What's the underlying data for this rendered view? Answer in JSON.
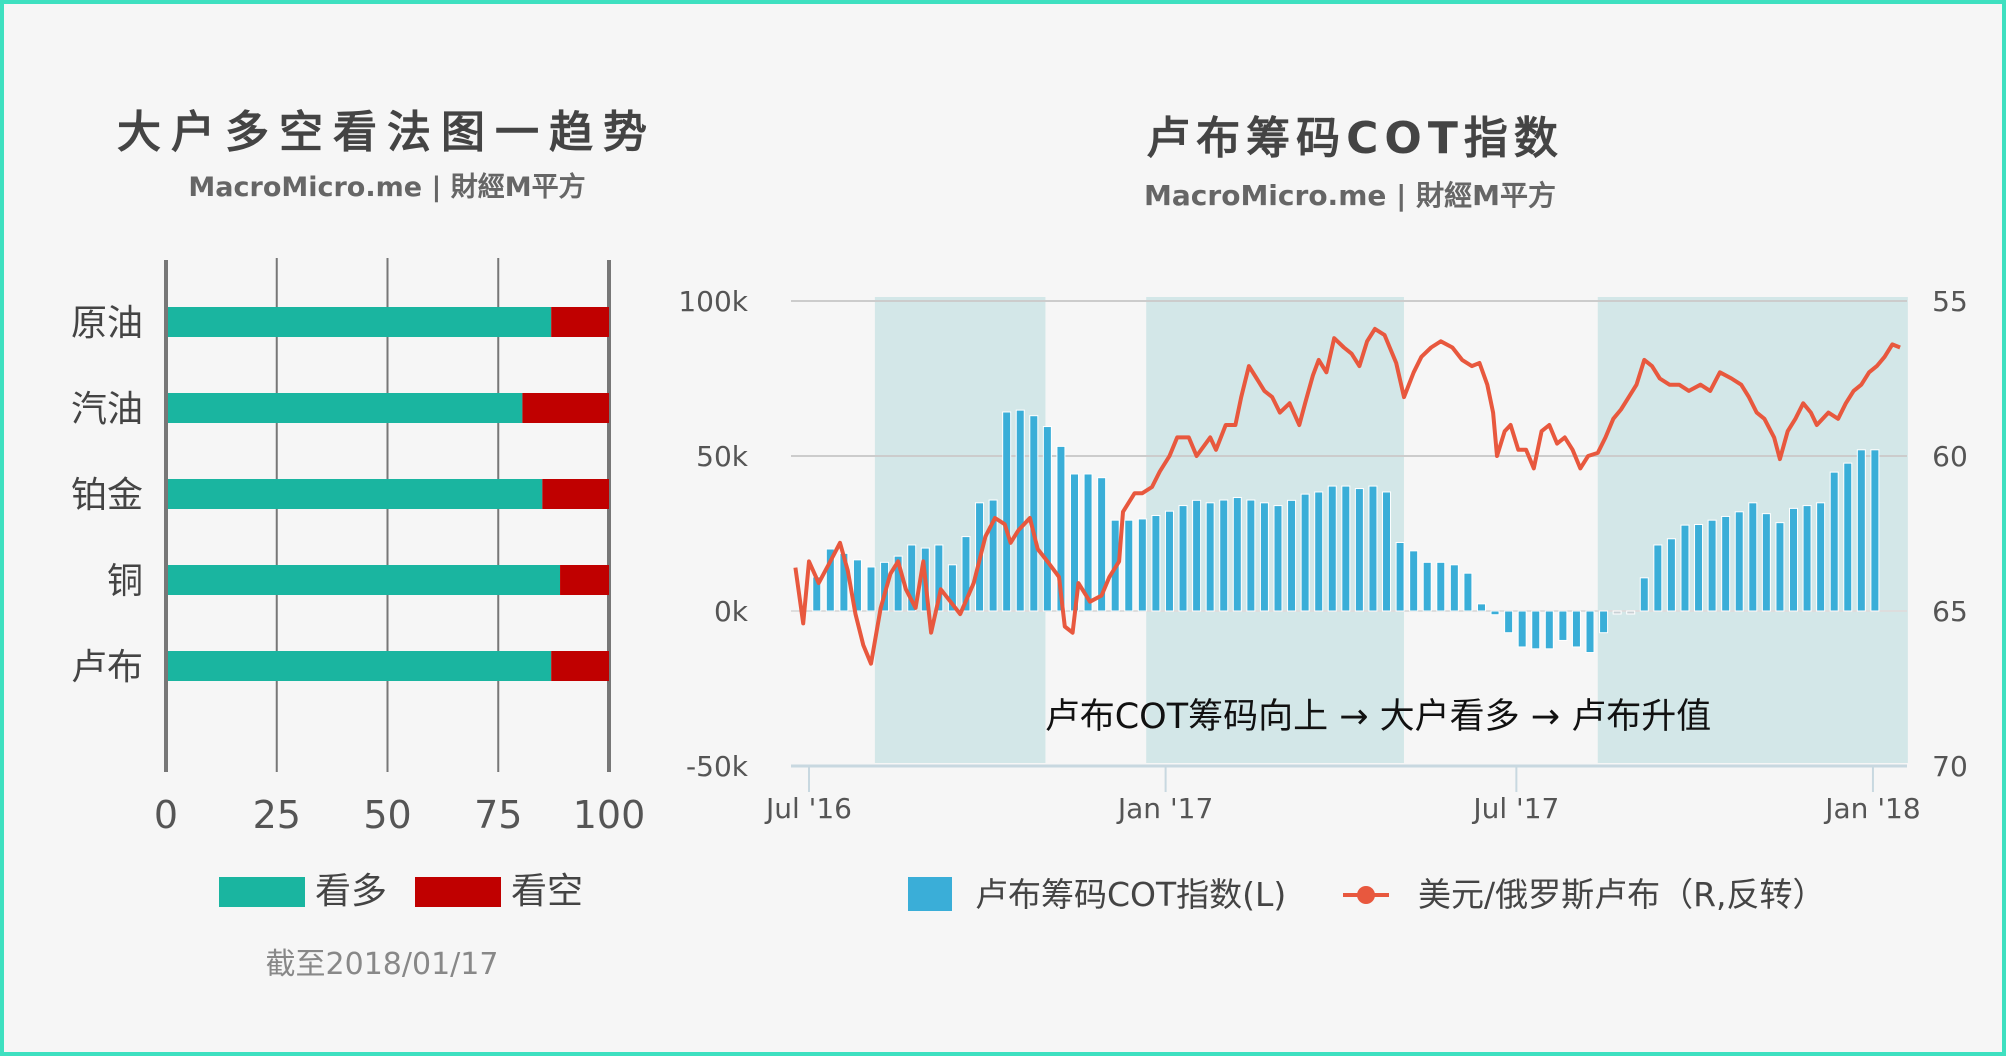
{
  "chart_data": [
    {
      "type": "bar",
      "orientation": "horizontal-stacked",
      "title": "大户多空看法图一趋势",
      "subtitle": "MacroMicro.me | 財經M平方",
      "categories": [
        "原油",
        "汽油",
        "铂金",
        "铜",
        "卢布"
      ],
      "series": [
        {
          "name": "看多",
          "color": "#1ab5a0",
          "values": [
            86.5,
            80,
            84.5,
            88.5,
            86.5
          ]
        },
        {
          "name": "看空",
          "color": "#c00000",
          "values": [
            13.5,
            20,
            15.5,
            11.5,
            13.5
          ]
        }
      ],
      "xlim": [
        0,
        100
      ],
      "xticks": [
        "0",
        "25",
        "50",
        "75",
        "100"
      ],
      "legend_position": "bottom",
      "footnote": "截至2018/01/17"
    },
    {
      "type": "bar+line",
      "title": "卢布筹码COT指数",
      "subtitle": "MacroMicro.me | 財經M平方",
      "x_unit": "days since 2016-07-01",
      "xlim": [
        -9,
        567
      ],
      "xticks": [
        {
          "day": 0,
          "label": "Jul '16"
        },
        {
          "day": 184,
          "label": "Jan '17"
        },
        {
          "day": 365,
          "label": "Jul '17"
        },
        {
          "day": 549,
          "label": "Jan '18"
        }
      ],
      "y_left": {
        "lim": [
          -50000,
          100000
        ],
        "ticks": [
          {
            "v": 100000,
            "label": "100k"
          },
          {
            "v": 50000,
            "label": "50k"
          },
          {
            "v": 0,
            "label": "0k"
          },
          {
            "v": -50000,
            "label": "-50k"
          }
        ]
      },
      "y_right": {
        "lim": [
          55,
          70
        ],
        "reversed": true,
        "ticks": [
          {
            "v": 55,
            "label": "55"
          },
          {
            "v": 60,
            "label": "60"
          },
          {
            "v": 65,
            "label": "65"
          },
          {
            "v": 70,
            "label": "70"
          }
        ]
      },
      "shaded_periods_days": [
        [
          34,
          122
        ],
        [
          174,
          307
        ],
        [
          407,
          567
        ]
      ],
      "annotation": "卢布COT筹码向上 → 大户看多 → 卢布升值",
      "series": [
        {
          "name": "卢布筹码COT指数(L)",
          "type": "bar",
          "color": "#3aaed8",
          "start_day": 4,
          "interval_days": 7,
          "values_k": [
            11,
            20,
            18.6,
            16.5,
            14.2,
            15.7,
            17.7,
            21.3,
            20.3,
            21.3,
            14.9,
            24,
            34.9,
            35.8,
            64.2,
            64.8,
            63,
            59.5,
            53.1,
            44.2,
            44.2,
            43,
            29.3,
            29.3,
            29.7,
            30.8,
            32.2,
            34,
            35.7,
            34.9,
            35.8,
            36.6,
            35.8,
            34.9,
            34,
            35.7,
            37.7,
            38.4,
            40.3,
            40.3,
            39.5,
            40.3,
            38.4,
            22.1,
            19.4,
            15.7,
            15.7,
            14.9,
            12.2,
            2.3,
            -1.2,
            -7,
            -11.6,
            -12.2,
            -12.2,
            -9.5,
            -11.6,
            -13.4,
            -7,
            0,
            0,
            10.7,
            21.3,
            23.3,
            27.7,
            27.9,
            29.3,
            30.5,
            32,
            34.9,
            31.4,
            28.5,
            33.1,
            34,
            34.9,
            44.8,
            47.7,
            52,
            52
          ]
        },
        {
          "name": "美元/俄罗斯卢布（R,反转）",
          "type": "line",
          "color": "#e8583e",
          "days": [
            -7,
            -3,
            0,
            5,
            11,
            16,
            20,
            24,
            28,
            32,
            37,
            42,
            46,
            50,
            55,
            59,
            63,
            68,
            73,
            78,
            85,
            91,
            96,
            101,
            104,
            108,
            114,
            118,
            123,
            129,
            132,
            136,
            139,
            145,
            151,
            155,
            160,
            162,
            168,
            172,
            177,
            181,
            186,
            190,
            196,
            200,
            207,
            210,
            215,
            220,
            223,
            227,
            231,
            235,
            239,
            243,
            248,
            253,
            256,
            260,
            263,
            267,
            271,
            276,
            280,
            284,
            288,
            292,
            297,
            303,
            307,
            312,
            316,
            321,
            326,
            332,
            337,
            342,
            346,
            350,
            353,
            355,
            359,
            362,
            366,
            370,
            374,
            378,
            382,
            386,
            390,
            394,
            398,
            402,
            407,
            411,
            415,
            419,
            423,
            427,
            431,
            435,
            439,
            444,
            449,
            454,
            460,
            465,
            470,
            476,
            481,
            485,
            489,
            493,
            498,
            501,
            505,
            509,
            513,
            517,
            520,
            526,
            531,
            535,
            539,
            543,
            547,
            551,
            555,
            559,
            563
          ],
          "values": [
            63.6,
            65.4,
            63.4,
            64.1,
            63.4,
            62.8,
            63.7,
            65.1,
            66.1,
            66.7,
            64.9,
            63.8,
            63.4,
            64.3,
            64.9,
            63.4,
            65.7,
            64.3,
            64.7,
            65.1,
            64.1,
            62.6,
            62.0,
            62.2,
            62.8,
            62.4,
            62.0,
            63.0,
            63.4,
            63.9,
            65.5,
            65.7,
            64.1,
            64.7,
            64.5,
            63.9,
            63.4,
            61.8,
            61.2,
            61.2,
            61.0,
            60.5,
            60.0,
            59.4,
            59.4,
            60.0,
            59.4,
            59.8,
            59.0,
            59.0,
            58.1,
            57.1,
            57.5,
            57.9,
            58.1,
            58.6,
            58.3,
            59.0,
            58.3,
            57.4,
            56.9,
            57.3,
            56.2,
            56.5,
            56.7,
            57.1,
            56.3,
            55.9,
            56.1,
            57.0,
            58.1,
            57.3,
            56.8,
            56.5,
            56.3,
            56.5,
            56.9,
            57.1,
            57.0,
            57.7,
            58.6,
            60.0,
            59.2,
            59.0,
            59.8,
            59.8,
            60.4,
            59.2,
            59.0,
            59.6,
            59.4,
            59.8,
            60.4,
            60.0,
            59.9,
            59.4,
            58.8,
            58.5,
            58.1,
            57.7,
            56.9,
            57.1,
            57.5,
            57.7,
            57.7,
            57.9,
            57.7,
            57.9,
            57.3,
            57.5,
            57.7,
            58.1,
            58.6,
            58.8,
            59.4,
            60.1,
            59.2,
            58.8,
            58.3,
            58.6,
            59.0,
            58.6,
            58.8,
            58.3,
            57.9,
            57.7,
            57.3,
            57.1,
            56.8,
            56.4,
            56.5
          ]
        }
      ],
      "legend_position": "bottom"
    }
  ]
}
